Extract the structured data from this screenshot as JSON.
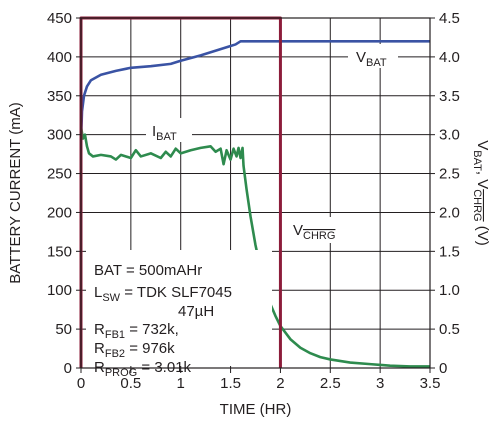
{
  "chart_data": {
    "type": "line",
    "xlabel": "TIME (HR)",
    "ylabel_left": "BATTERY CURRENT (mA)",
    "ylabel_right": {
      "prefix": "V",
      "sub1": "BAT",
      "sep": ", V",
      "sub2": "CHRG",
      "suffix": " (V)"
    },
    "x_range": [
      0,
      3.5
    ],
    "y_left_range": [
      0,
      450
    ],
    "y_right_range": [
      0,
      4.5
    ],
    "x_ticks": [
      "0",
      "0.5",
      "1",
      "1.5",
      "2",
      "2.5",
      "3",
      "3.5"
    ],
    "y_left_ticks": [
      "0",
      "50",
      "100",
      "150",
      "200",
      "250",
      "300",
      "350",
      "400",
      "450"
    ],
    "y_right_ticks": [
      "0",
      "0.5",
      "1.0",
      "1.5",
      "2.0",
      "2.5",
      "3.0",
      "3.5",
      "4.0",
      "4.5"
    ],
    "grid": true,
    "series": [
      {
        "name": "VBAT",
        "label": {
          "main": "V",
          "sub": "BAT"
        },
        "axis": "right",
        "color": "#3a53a4",
        "points": [
          [
            0,
            2.9
          ],
          [
            0.01,
            3.3
          ],
          [
            0.03,
            3.5
          ],
          [
            0.06,
            3.62
          ],
          [
            0.1,
            3.7
          ],
          [
            0.2,
            3.77
          ],
          [
            0.35,
            3.82
          ],
          [
            0.5,
            3.86
          ],
          [
            0.7,
            3.88
          ],
          [
            0.9,
            3.91
          ],
          [
            1.0,
            3.95
          ],
          [
            1.2,
            4.02
          ],
          [
            1.4,
            4.1
          ],
          [
            1.5,
            4.14
          ],
          [
            1.55,
            4.16
          ],
          [
            1.6,
            4.2
          ],
          [
            1.62,
            4.2
          ],
          [
            2.0,
            4.2
          ],
          [
            2.5,
            4.2
          ],
          [
            3.0,
            4.2
          ],
          [
            3.5,
            4.2
          ]
        ]
      },
      {
        "name": "IBAT",
        "label": {
          "main": "I",
          "sub": "BAT"
        },
        "axis": "left",
        "color": "#2e8b4e",
        "points": [
          [
            0,
            310
          ],
          [
            0.02,
            295
          ],
          [
            0.04,
            300
          ],
          [
            0.06,
            285
          ],
          [
            0.08,
            276
          ],
          [
            0.12,
            272
          ],
          [
            0.2,
            274
          ],
          [
            0.3,
            272
          ],
          [
            0.35,
            268
          ],
          [
            0.4,
            274
          ],
          [
            0.5,
            270
          ],
          [
            0.55,
            280
          ],
          [
            0.6,
            272
          ],
          [
            0.7,
            276
          ],
          [
            0.8,
            270
          ],
          [
            0.85,
            278
          ],
          [
            0.9,
            272
          ],
          [
            0.95,
            282
          ],
          [
            1.0,
            276
          ],
          [
            1.1,
            280
          ],
          [
            1.2,
            283
          ],
          [
            1.3,
            285
          ],
          [
            1.35,
            278
          ],
          [
            1.4,
            282
          ],
          [
            1.43,
            262
          ],
          [
            1.46,
            280
          ],
          [
            1.5,
            268
          ],
          [
            1.53,
            282
          ],
          [
            1.56,
            272
          ],
          [
            1.58,
            283
          ],
          [
            1.6,
            270
          ],
          [
            1.62,
            283
          ],
          [
            1.63,
            260
          ],
          [
            1.66,
            230
          ],
          [
            1.7,
            195
          ],
          [
            1.75,
            158
          ],
          [
            1.8,
            128
          ],
          [
            1.85,
            102
          ],
          [
            1.9,
            82
          ],
          [
            1.95,
            67
          ],
          [
            2.0,
            54
          ],
          [
            2.1,
            37
          ],
          [
            2.2,
            26
          ],
          [
            2.3,
            19
          ],
          [
            2.4,
            14
          ],
          [
            2.5,
            11
          ],
          [
            2.7,
            7
          ],
          [
            2.9,
            5
          ],
          [
            3.1,
            3
          ],
          [
            3.3,
            2
          ],
          [
            3.5,
            2
          ]
        ]
      },
      {
        "name": "VCHRG",
        "label": {
          "main": "V",
          "sub": "CHRG"
        },
        "axis": "right",
        "color": "#8c1c3a",
        "points": [
          [
            0,
            0
          ],
          [
            0,
            4.5
          ],
          [
            2.0,
            4.5
          ],
          [
            2.0,
            0
          ]
        ]
      }
    ],
    "annotations": [
      {
        "main": "BAT = 500mAHr"
      },
      {
        "main": "L",
        "sub": "SW",
        "rest": " =  TDK SLF7045"
      },
      {
        "main": "47µH"
      },
      {
        "main": "R",
        "sub": "FB1",
        "rest": " = 732k,"
      },
      {
        "main": "R",
        "sub": "FB2",
        "rest": " = 976k"
      },
      {
        "main": "R",
        "sub": "PROG",
        "rest": " = 3.01k"
      }
    ]
  }
}
